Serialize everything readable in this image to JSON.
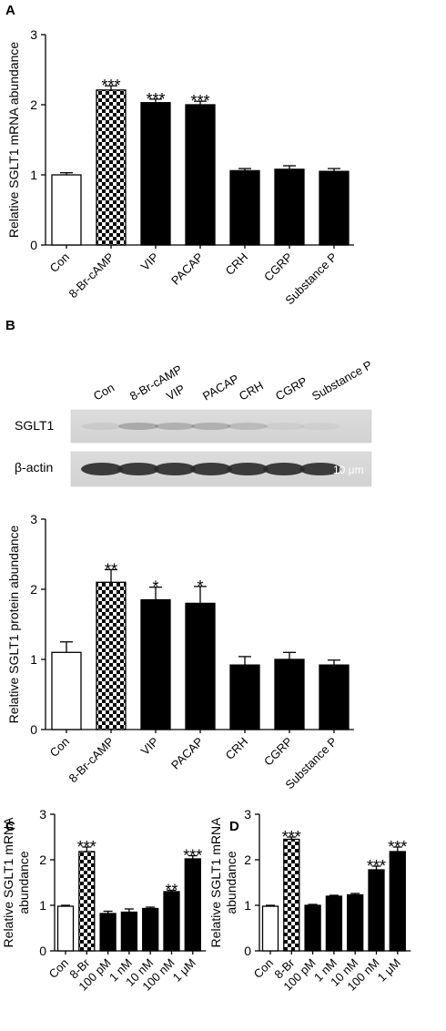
{
  "figure": {
    "western_blot": {
      "lane_labels": [
        "Con",
        "8-Br-cAMP",
        "VIP",
        "PACAP",
        "CRH",
        "CGRP",
        "Substance P"
      ],
      "row_labels": [
        "SGLT1",
        "β-actin"
      ],
      "scale_bar_text": "10 μm"
    }
  },
  "chart_data": [
    {
      "panel": "A",
      "type": "bar",
      "categories": [
        "Con",
        "8-Br-cAMP",
        "VIP",
        "PACAP",
        "CRH",
        "CGRP",
        "Substance P"
      ],
      "values": [
        1.0,
        2.21,
        2.03,
        2.0,
        1.06,
        1.08,
        1.05
      ],
      "errors": [
        0.03,
        0.06,
        0.05,
        0.05,
        0.03,
        0.05,
        0.04
      ],
      "significance": [
        "",
        "***",
        "***",
        "***",
        "",
        "",
        ""
      ],
      "bar_styles": [
        "white",
        "checker",
        "black",
        "black",
        "black",
        "black",
        "black"
      ],
      "ylabel": "Relative SGLT1 mRNA abundance",
      "xlabel": "",
      "ylim": [
        0,
        3
      ],
      "yticks": [
        "0",
        "1",
        "2",
        "3"
      ]
    },
    {
      "panel": "B",
      "type": "bar",
      "categories": [
        "Con",
        "8-Br-cAMP",
        "VIP",
        "PACAP",
        "CRH",
        "CGRP",
        "Substance P"
      ],
      "values": [
        1.1,
        2.1,
        1.85,
        1.8,
        0.92,
        1.0,
        0.92
      ],
      "errors": [
        0.15,
        0.18,
        0.18,
        0.24,
        0.12,
        0.1,
        0.07
      ],
      "significance": [
        "",
        "**",
        "*",
        "*",
        "",
        "",
        ""
      ],
      "bar_styles": [
        "white",
        "checker",
        "black",
        "black",
        "black",
        "black",
        "black"
      ],
      "ylabel": "Relative SGLT1 protein abundance",
      "xlabel": "",
      "ylim": [
        0,
        3
      ],
      "yticks": [
        "0",
        "1",
        "2",
        "3"
      ]
    },
    {
      "panel": "C",
      "type": "bar",
      "categories": [
        "Con",
        "8-Br",
        "100 pM",
        "1 nM",
        "10 nM",
        "100 nM",
        "1 μM"
      ],
      "values": [
        0.98,
        2.18,
        0.82,
        0.85,
        0.93,
        1.3,
        2.02
      ],
      "errors": [
        0.02,
        0.1,
        0.05,
        0.07,
        0.03,
        0.03,
        0.07
      ],
      "significance": [
        "",
        "***",
        "",
        "",
        "",
        "**",
        "***"
      ],
      "bar_styles": [
        "white",
        "checker",
        "black",
        "black",
        "black",
        "black",
        "black"
      ],
      "ylabel": "Relative SGLT1 mRNA abundance",
      "xlabel": "",
      "ylim": [
        0,
        3
      ],
      "yticks": [
        "0",
        "1",
        "2",
        "3"
      ]
    },
    {
      "panel": "D",
      "type": "bar",
      "categories": [
        "Con",
        "8-Br",
        "100 pM",
        "1 nM",
        "10 nM",
        "100 nM",
        "1 μM"
      ],
      "values": [
        0.98,
        2.45,
        1.0,
        1.2,
        1.23,
        1.78,
        2.18
      ],
      "errors": [
        0.02,
        0.05,
        0.02,
        0.02,
        0.03,
        0.08,
        0.1
      ],
      "significance": [
        "",
        "***",
        "",
        "",
        "",
        "***",
        "***"
      ],
      "bar_styles": [
        "white",
        "checker",
        "black",
        "black",
        "black",
        "black",
        "black"
      ],
      "ylabel": "Relative SGLT1 mRNA abundance",
      "xlabel": "",
      "ylim": [
        0,
        3
      ],
      "yticks": [
        "0",
        "1",
        "2",
        "3"
      ]
    }
  ]
}
